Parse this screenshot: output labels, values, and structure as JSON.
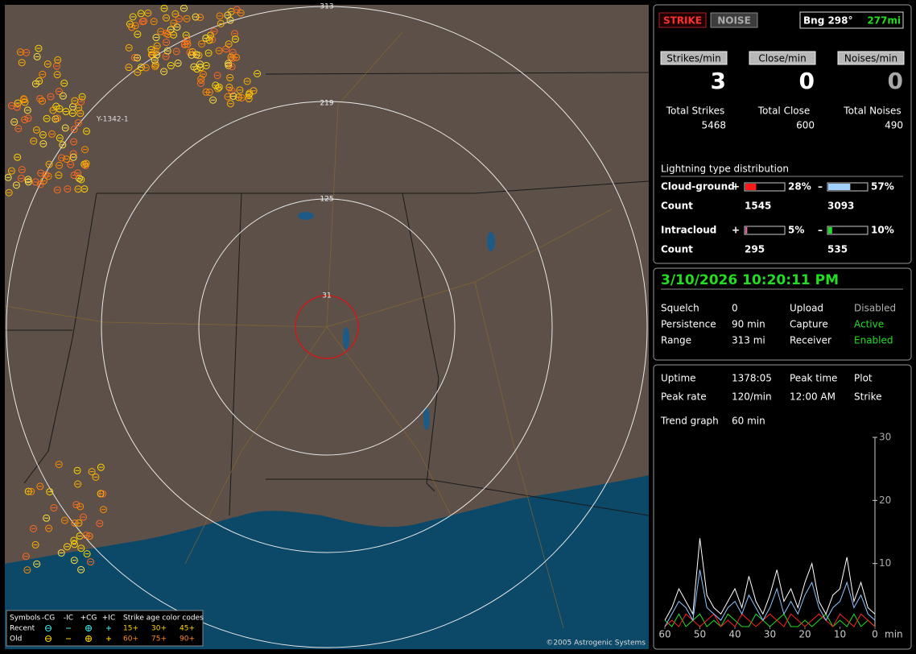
{
  "map": {
    "ring_labels": [
      "313",
      "219",
      "125",
      "31"
    ],
    "label": "Y-1342-1",
    "copyright": "©2005 Astrogenic Systems",
    "legend": {
      "symbols": "Symbols",
      "columns": [
        "-CG",
        "-IC",
        "+CG",
        "+IC"
      ],
      "rows": [
        "Recent",
        "Old"
      ],
      "age_title": "Strike age color codes",
      "ages": [
        [
          "15+",
          "30+",
          "45+"
        ],
        [
          "60+",
          "75+",
          "90+"
        ]
      ]
    }
  },
  "header": {
    "buttons": [
      "STRIKE",
      "NOISE"
    ],
    "bearing": "Bng 298°",
    "distance": "277mi"
  },
  "rates": [
    {
      "label": "Strikes/min",
      "value": 3,
      "color": "#ffffff"
    },
    {
      "label": "Close/min",
      "value": 0,
      "color": "#ffffff"
    },
    {
      "label": "Noises/min",
      "value": 0,
      "color": "#a8a8a8"
    }
  ],
  "totals": [
    {
      "label": "Total Strikes",
      "value": 5468
    },
    {
      "label": "Total Close",
      "value": 600
    },
    {
      "label": "Total Noises",
      "value": 490
    }
  ],
  "distribution": {
    "title": "Lightning type distribution",
    "count_label": "Count",
    "rows": [
      {
        "name": "Cloud-ground",
        "parts": [
          {
            "sign": "+",
            "percent": {
              "value": 28,
              "label": "28%"
            },
            "count": 1545,
            "color": "#ff1a1a"
          },
          {
            "sign": "–",
            "percent": {
              "value": 57,
              "label": "57%"
            },
            "count": 3093,
            "color": "#9fd0ff"
          }
        ]
      },
      {
        "name": "Intracloud",
        "parts": [
          {
            "sign": "+",
            "percent": {
              "value": 5,
              "label": "5%"
            },
            "count": 295,
            "color": "#e0609a"
          },
          {
            "sign": "–",
            "percent": {
              "value": 10,
              "label": "10%"
            },
            "count": 535,
            "color": "#22dd22"
          }
        ]
      }
    ]
  },
  "status": {
    "datetime": "3/10/2026 10:20:11 PM",
    "rows": [
      [
        {
          "text": "Squelch"
        },
        {
          "text": "0"
        },
        {
          "text": "Upload"
        },
        {
          "text": "Disabled",
          "color": "#b0b0b0"
        }
      ],
      [
        {
          "text": "Persistence"
        },
        {
          "text": "90 min"
        },
        {
          "text": "Capture"
        },
        {
          "text": "Active",
          "color": "#22dd22"
        }
      ],
      [
        {
          "text": "Range"
        },
        {
          "text": "313 mi"
        },
        {
          "text": "Receiver"
        },
        {
          "text": "Enabled",
          "color": "#22dd22"
        }
      ]
    ]
  },
  "stats": {
    "rows": [
      [
        "Uptime",
        "1378:05",
        "Peak time",
        "Plot"
      ],
      [
        "Peak rate",
        "120/min",
        "12:00 AM",
        "Strike"
      ],
      [
        "Trend graph",
        "60 min"
      ]
    ]
  },
  "trend": {
    "ylim": [
      0,
      30
    ],
    "yticks": [
      10,
      20,
      30
    ],
    "xlim": [
      60,
      0
    ],
    "xticks": [
      60,
      50,
      40,
      30,
      20,
      10,
      0
    ],
    "x_unit": "min",
    "x": [
      60,
      58,
      56,
      54,
      52,
      50,
      48,
      46,
      44,
      42,
      40,
      38,
      36,
      34,
      32,
      30,
      28,
      26,
      24,
      22,
      20,
      18,
      16,
      14,
      12,
      10,
      8,
      6,
      4,
      2,
      0
    ],
    "series": [
      {
        "color": "#ffffff",
        "values": [
          1,
          3,
          6,
          4,
          2,
          14,
          5,
          3,
          2,
          4,
          6,
          3,
          8,
          4,
          2,
          5,
          9,
          4,
          6,
          3,
          7,
          10,
          4,
          2,
          5,
          6,
          11,
          4,
          7,
          3,
          2
        ]
      },
      {
        "color": "#8fc4ff",
        "values": [
          0,
          2,
          4,
          3,
          1,
          9,
          3,
          2,
          1,
          3,
          4,
          2,
          5,
          3,
          1,
          3,
          6,
          2,
          4,
          2,
          5,
          7,
          3,
          1,
          3,
          4,
          7,
          3,
          5,
          2,
          1
        ]
      },
      {
        "color": "#ff2020",
        "values": [
          0,
          1,
          0,
          2,
          1,
          0,
          1,
          2,
          0,
          1,
          0,
          2,
          1,
          0,
          1,
          2,
          1,
          0,
          2,
          1,
          0,
          1,
          2,
          1,
          0,
          2,
          1,
          0,
          2,
          1,
          0
        ]
      },
      {
        "color": "#22dd22",
        "values": [
          1,
          0,
          2,
          0,
          1,
          2,
          0,
          1,
          0,
          2,
          1,
          0,
          0,
          2,
          1,
          0,
          1,
          2,
          0,
          0,
          1,
          0,
          1,
          2,
          0,
          1,
          0,
          2,
          0,
          1,
          0
        ]
      }
    ]
  }
}
